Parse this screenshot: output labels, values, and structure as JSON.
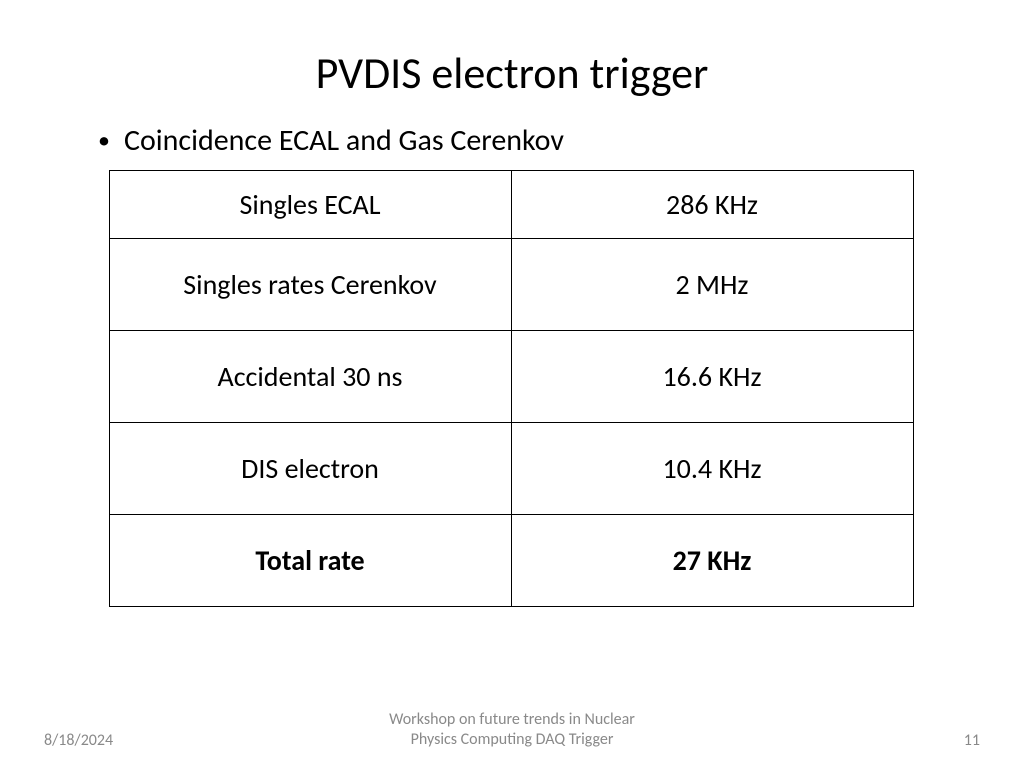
{
  "title": "PVDIS electron trigger",
  "bullet": "Coincidence ECAL and Gas Cerenkov",
  "table": {
    "rows": [
      {
        "label": "Singles ECAL",
        "value": "286 KHz",
        "small": true,
        "bold": false
      },
      {
        "label": "Singles rates Cerenkov",
        "value": "2 MHz",
        "small": false,
        "bold": false
      },
      {
        "label": "Accidental 30 ns",
        "value": "16.6 KHz",
        "small": false,
        "bold": false
      },
      {
        "label": "DIS electron",
        "value": "10.4 KHz",
        "small": false,
        "bold": false
      },
      {
        "label": "Total rate",
        "value": "27 KHz",
        "small": false,
        "bold": true
      }
    ],
    "border_color": "#000000",
    "font_size_pt": 28,
    "col_widths_pct": [
      50,
      50
    ]
  },
  "footer": {
    "date": "8/18/2024",
    "center_line1": "Workshop on future trends in Nuclear",
    "center_line2": "Physics Computing  DAQ Trigger",
    "page": "11"
  },
  "colors": {
    "background": "#ffffff",
    "text": "#000000",
    "footer_text": "#898989"
  },
  "typography": {
    "title_fontsize": 44,
    "bullet_fontsize": 30,
    "table_fontsize": 28,
    "footer_fontsize": 16,
    "font_family": "Calibri"
  }
}
